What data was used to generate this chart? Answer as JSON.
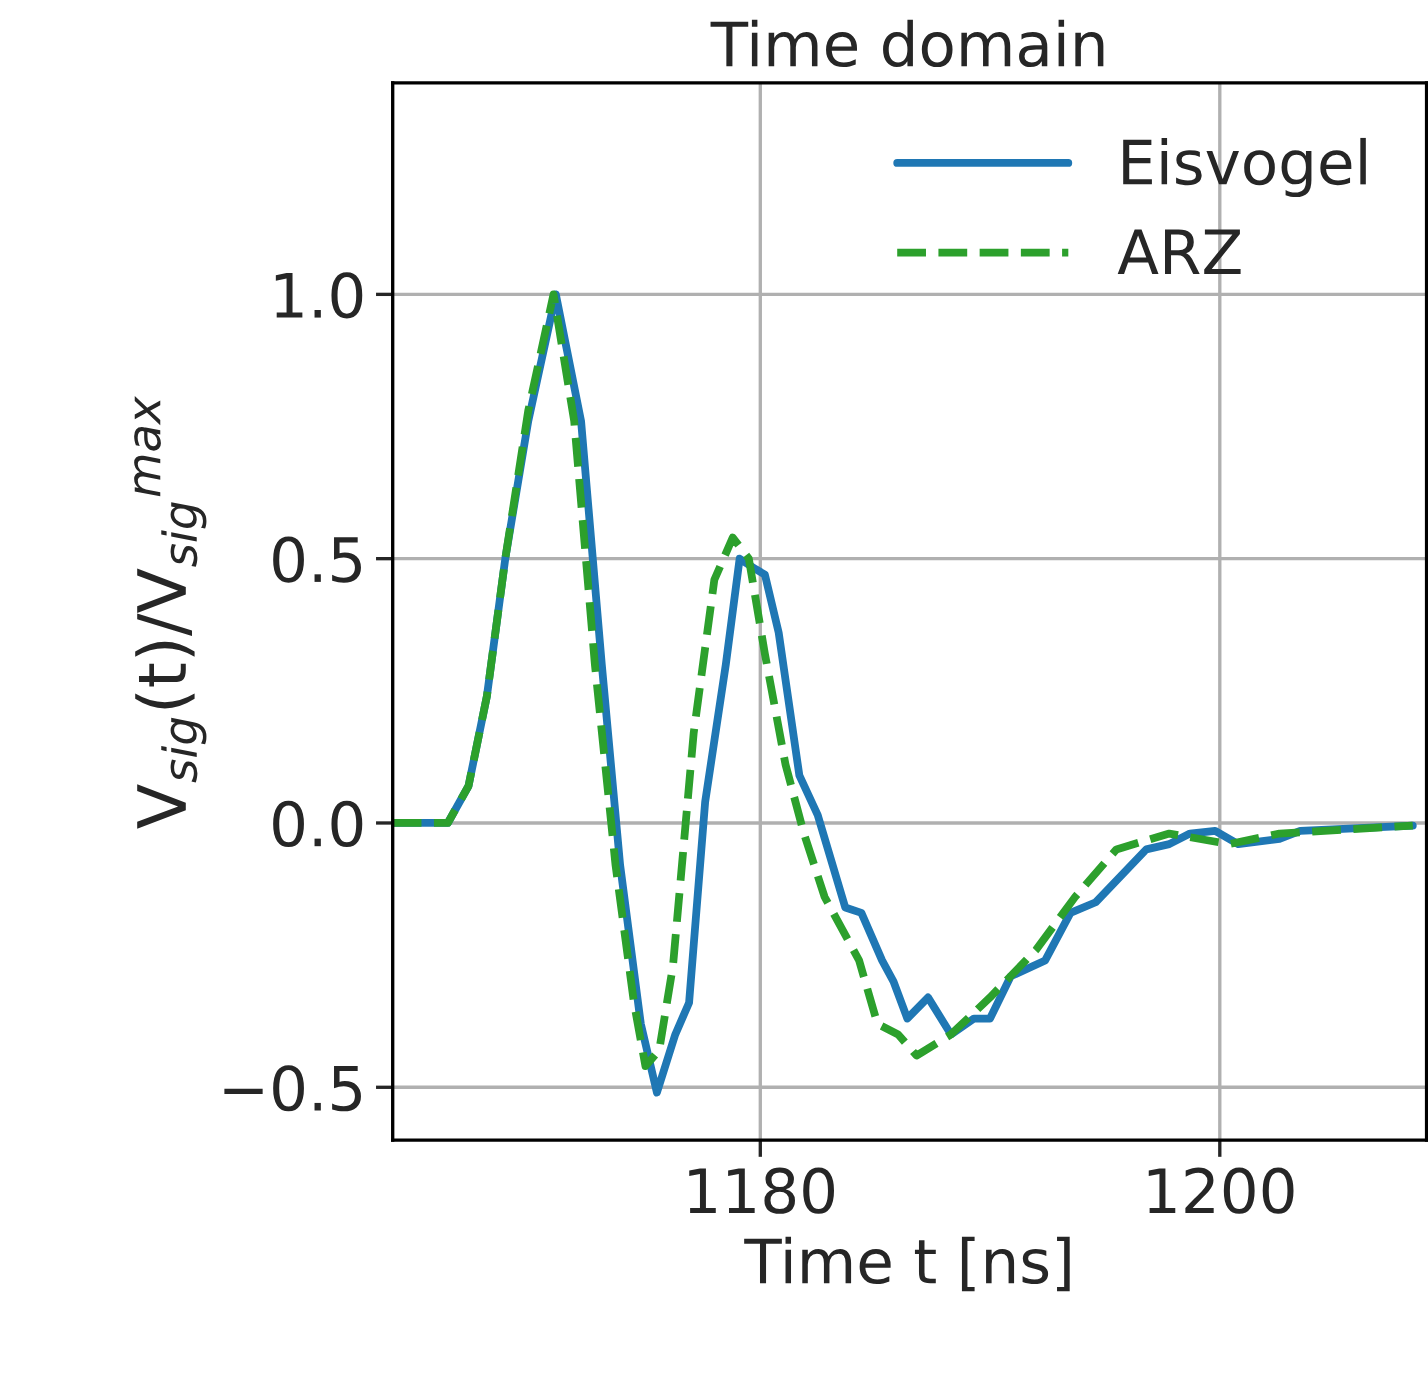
{
  "chart_data": {
    "type": "line",
    "title": "Time domain",
    "xlabel": "Time t [ns]",
    "ylabel": "V$_{sig}$(t)/V$_{sig}$$^{max}$",
    "xlim": [
      1164,
      1209
    ],
    "xticks": [
      1180,
      1200
    ],
    "ylim": [
      -0.6,
      1.4
    ],
    "yticks": [
      -0.5,
      {
        "value": 0,
        "label": "0.0"
      },
      0.5,
      {
        "value": 1,
        "label": "1.0"
      }
    ],
    "grid": true,
    "legend": "top right",
    "marker": "none",
    "series": [
      {
        "name": "Eisvogel",
        "color": "#1f77b4",
        "line_style": "solid",
        "x": [
          1164,
          1166.4,
          1167.3,
          1168.1,
          1168.9,
          1169.9,
          1171.1,
          1172.2,
          1173.1,
          1173.9,
          1174.8,
          1175.5,
          1176.3,
          1176.9,
          1177.6,
          1178.5,
          1179.1,
          1179.8,
          1180.2,
          1180.8,
          1181.7,
          1182.5,
          1183.7,
          1184.4,
          1185.3,
          1185.8,
          1186.4,
          1187.3,
          1188.3,
          1189.3,
          1190.0,
          1190.9,
          1192.4,
          1193.5,
          1194.6,
          1196.8,
          1197.8,
          1198.7,
          1199.8,
          1200.8,
          1202.6,
          1203.5,
          1208.4
        ],
        "values": [
          0,
          0,
          0.07,
          0.24,
          0.5,
          0.76,
          1.0,
          0.76,
          0.3,
          -0.08,
          -0.38,
          -0.51,
          -0.4,
          -0.34,
          0.04,
          0.3,
          0.5,
          0.48,
          0.47,
          0.36,
          0.09,
          0.015,
          -0.16,
          -0.17,
          -0.26,
          -0.3,
          -0.37,
          -0.33,
          -0.4,
          -0.37,
          -0.37,
          -0.29,
          -0.26,
          -0.17,
          -0.15,
          -0.05,
          -0.04,
          -0.02,
          -0.015,
          -0.04,
          -0.03,
          -0.015,
          -0.005
        ]
      },
      {
        "name": "ARZ",
        "color": "#2ca02c",
        "line_style": "dashed",
        "x": [
          1164,
          1166.4,
          1167.3,
          1168.1,
          1168.9,
          1169.9,
          1171.0,
          1171.9,
          1172.8,
          1173.7,
          1174.5,
          1175.0,
          1175.6,
          1176.2,
          1177.1,
          1178.0,
          1178.8,
          1179.5,
          1180.2,
          1181.1,
          1181.9,
          1182.8,
          1184.3,
          1185.1,
          1186.0,
          1186.8,
          1188.3,
          1190.0,
          1192.0,
          1193.7,
          1195.5,
          1197.8,
          1200.4,
          1202.6,
          1208.4
        ],
        "values": [
          0,
          0,
          0.07,
          0.24,
          0.5,
          0.78,
          1.0,
          0.76,
          0.3,
          -0.08,
          -0.34,
          -0.46,
          -0.43,
          -0.27,
          0.17,
          0.46,
          0.54,
          0.5,
          0.32,
          0.11,
          -0.02,
          -0.14,
          -0.26,
          -0.38,
          -0.4,
          -0.44,
          -0.4,
          -0.33,
          -0.24,
          -0.14,
          -0.05,
          -0.02,
          -0.04,
          -0.02,
          -0.005
        ]
      }
    ]
  }
}
